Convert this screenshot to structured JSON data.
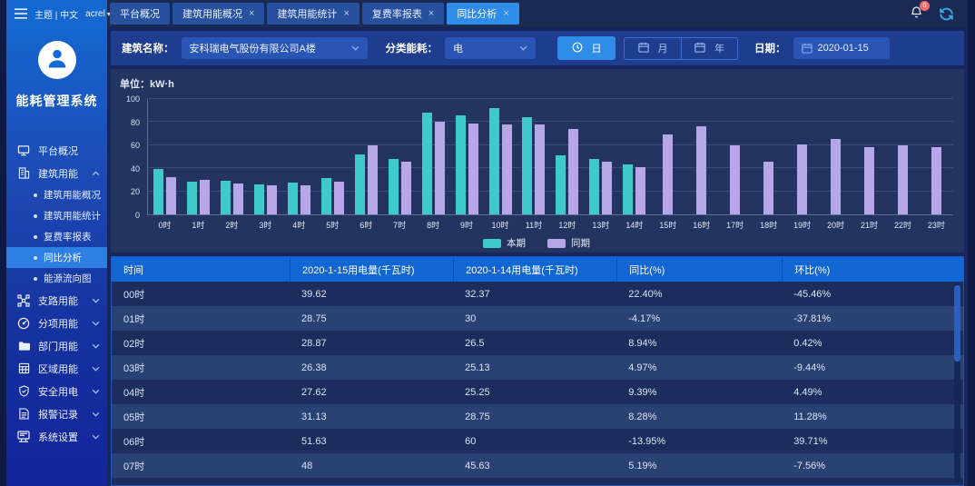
{
  "topbar": {
    "theme_label": "主题 | 中文",
    "user_label": "acrel",
    "notification_badge": "0",
    "tabs": [
      {
        "label": "平台概况",
        "closable": false,
        "active": false
      },
      {
        "label": "建筑用能概况",
        "closable": true,
        "active": false
      },
      {
        "label": "建筑用能统计",
        "closable": true,
        "active": false
      },
      {
        "label": "复费率报表",
        "closable": true,
        "active": false
      },
      {
        "label": "同比分析",
        "closable": true,
        "active": true
      }
    ]
  },
  "sidebar": {
    "system_title": "能耗管理系统",
    "menu": [
      {
        "label": "平台概况",
        "icon": "monitor-icon",
        "expandable": false
      },
      {
        "label": "建筑用能",
        "icon": "building-icon",
        "expandable": true,
        "expanded": true,
        "children": [
          {
            "label": "建筑用能概况",
            "active": false
          },
          {
            "label": "建筑用能统计",
            "active": false
          },
          {
            "label": "复费率报表",
            "active": false
          },
          {
            "label": "同比分析",
            "active": true
          },
          {
            "label": "能源流向图",
            "active": false
          }
        ]
      },
      {
        "label": "支路用能",
        "icon": "branch-icon",
        "expandable": true
      },
      {
        "label": "分项用能",
        "icon": "category-icon",
        "expandable": true
      },
      {
        "label": "部门用能",
        "icon": "folder-icon",
        "expandable": true
      },
      {
        "label": "区域用能",
        "icon": "region-icon",
        "expandable": true
      },
      {
        "label": "安全用电",
        "icon": "shield-icon",
        "expandable": true
      },
      {
        "label": "报警记录",
        "icon": "alarm-doc-icon",
        "expandable": true
      },
      {
        "label": "系统设置",
        "icon": "settings-icon",
        "expandable": true
      }
    ]
  },
  "filters": {
    "building_label": "建筑名称：",
    "building_value": "安科瑞电气股份有限公司A楼",
    "energy_label": "分类能耗：",
    "energy_value": "电",
    "period_buttons": [
      {
        "label": "日",
        "icon": "clock-icon",
        "active": true
      },
      {
        "label": "月",
        "icon": "calendar-icon",
        "active": false
      },
      {
        "label": "年",
        "icon": "calendar-icon",
        "active": false
      }
    ],
    "date_label": "日期：",
    "date_value": "2020-01-15"
  },
  "chart": {
    "unit_label": "单位：kW·h"
  },
  "chart_data": {
    "type": "bar",
    "title": "",
    "categories": [
      "0时",
      "1时",
      "2时",
      "3时",
      "4时",
      "5时",
      "6时",
      "7时",
      "8时",
      "9时",
      "10时",
      "11时",
      "12时",
      "13时",
      "14时",
      "15时",
      "16时",
      "17时",
      "18时",
      "19时",
      "20时",
      "21时",
      "22时",
      "23时"
    ],
    "series": [
      {
        "name": "本期",
        "color": "#3ec9cc",
        "values": [
          39.62,
          28.75,
          28.87,
          26.38,
          27.62,
          31.13,
          51.63,
          48,
          88,
          86,
          92,
          84,
          51,
          48,
          43,
          null,
          null,
          null,
          null,
          null,
          null,
          null,
          null,
          null
        ]
      },
      {
        "name": "同期",
        "color": "#b7a6e8",
        "values": [
          32.37,
          30,
          26.5,
          25.13,
          25.25,
          28.75,
          60,
          45.63,
          80,
          79,
          78,
          78,
          74,
          46,
          41,
          69,
          76,
          60,
          46,
          61,
          65,
          58,
          60,
          58
        ]
      }
    ],
    "xlabel": "",
    "ylabel": "",
    "ylim": [
      0,
      100
    ],
    "yticks": [
      0,
      20,
      40,
      60,
      80,
      100
    ],
    "grid": true,
    "legend_position": "bottom"
  },
  "table": {
    "columns": [
      "时间",
      "2020-1-15用电量(千瓦时)",
      "2020-1-14用电量(千瓦时)",
      "同比(%)",
      "环比(%)"
    ],
    "rows": [
      [
        "00时",
        "39.62",
        "32.37",
        "22.40%",
        "-45.46%"
      ],
      [
        "01时",
        "28.75",
        "30",
        "-4.17%",
        "-37.81%"
      ],
      [
        "02时",
        "28.87",
        "26.5",
        "8.94%",
        "0.42%"
      ],
      [
        "03时",
        "26.38",
        "25.13",
        "4.97%",
        "-9.44%"
      ],
      [
        "04时",
        "27.62",
        "25.25",
        "9.39%",
        "4.49%"
      ],
      [
        "05时",
        "31.13",
        "28.75",
        "8.28%",
        "11.28%"
      ],
      [
        "06时",
        "51.63",
        "60",
        "-13.95%",
        "39.71%"
      ],
      [
        "07时",
        "48",
        "45.63",
        "5.19%",
        "-7.56%"
      ]
    ]
  },
  "colors": {
    "series_current": "#3ec9cc",
    "series_previous": "#b7a6e8",
    "tab_active": "#2f8ce8",
    "table_header_bg": "#1266d4",
    "badge": "#f56c6c",
    "sidebar_active": "#2e7fe2"
  }
}
